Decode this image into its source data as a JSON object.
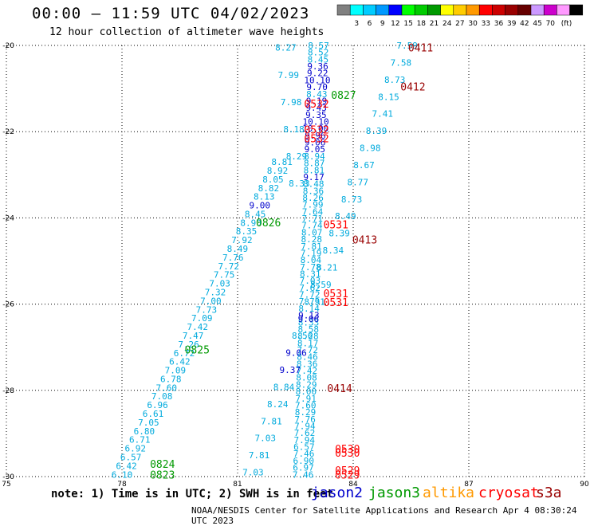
{
  "header": {
    "title": "00:00 — 11:59 UTC 04/02/2023",
    "subtitle": "12 hour collection of altimeter wave heights"
  },
  "color_scale": {
    "unit": "(ft)",
    "colors": [
      "#808080",
      "#00ffff",
      "#00ccff",
      "#0099ff",
      "#0000ff",
      "#00ff00",
      "#00cc00",
      "#009900",
      "#ffff00",
      "#ffcc00",
      "#ff9900",
      "#ff0000",
      "#cc0000",
      "#990000",
      "#660000",
      "#cc99ff",
      "#cc00cc",
      "#ff99ff",
      "#000000"
    ],
    "labels": [
      "3",
      "6",
      "9",
      "12",
      "15",
      "18",
      "21",
      "24",
      "27",
      "30",
      "33",
      "36",
      "39",
      "42",
      "45",
      "70"
    ]
  },
  "note": "note:  1) Time is in UTC; 2) SWH is in feet",
  "satellites": [
    {
      "name": "jason2",
      "color": "#0000cc"
    },
    {
      "name": "jason3",
      "color": "#009900"
    },
    {
      "name": "altika",
      "color": "#ff9900"
    },
    {
      "name": "cryosat",
      "color": "#ff0000"
    },
    {
      "name": "s3a",
      "color": "#990000"
    }
  ],
  "footer": "NOAA/NESDIS Center for Satellite Applications and Research   Apr  4 08:30:24 UTC 2023",
  "chart_data": {
    "type": "scatter",
    "x_ticks": [
      "75",
      "78",
      "81",
      "84",
      "87",
      "90"
    ],
    "y_ticks": [
      "-20",
      "-22",
      "-24",
      "-26",
      "-28",
      "-30"
    ],
    "xlim": [
      75,
      90
    ],
    "ylim": [
      -30,
      -20
    ],
    "grid": true,
    "tracks": [
      {
        "color": "#00aadd",
        "lon0": 83.1,
        "lat0": -20,
        "lon1": 82.7,
        "lat1": -29.95,
        "values": [
          "8.57",
          "8.52",
          "8.45",
          "9.36",
          "9.22",
          "10.10",
          "9.70",
          "8.43",
          "9.19",
          "9.43",
          "9.35",
          "10.10",
          "10.00",
          "9.96",
          "9.06",
          "9.05",
          "8.94",
          "8.87",
          "8.81",
          "9.17",
          "8.48",
          "8.36",
          "8.26",
          "7.99",
          "7.64",
          "7.71",
          "7.74",
          "8.07",
          "8.28",
          "7.81",
          "7.19",
          "8.04",
          "7.78",
          "8.31",
          "7.03",
          "7.62",
          "7.72",
          "7.73",
          "8.14",
          "9.13",
          "8.33",
          "8.58",
          "8.28",
          "8.17",
          "7.72",
          "8.46",
          "8.36",
          "7.42",
          "8.08",
          "8.29",
          "8.00",
          "7.91",
          "7.60",
          "8.29",
          "7.76",
          "7.94",
          "7.62",
          "7.94",
          "6.57",
          "7.46",
          "6.90",
          "6.97",
          "7.46"
        ]
      },
      {
        "color": "#00aadd",
        "lon0": 82.25,
        "lat0": -20.05,
        "lon1": 82.6,
        "lat1": -23.2,
        "values": [
          "8.27",
          "7.99",
          "7.98",
          "8.18",
          "8.29",
          "8.33"
        ]
      },
      {
        "color": "#00aadd",
        "lon0": 85.4,
        "lat0": -20,
        "lon1": 81.4,
        "lat1": -29.9,
        "values": [
          "7.59",
          "7.58",
          "8.73",
          "8.15",
          "7.41",
          "8.39",
          "8.98",
          "8.67",
          "8.77",
          "8.73",
          "8.49",
          "8.39",
          "8.34",
          "8.21",
          "8.59",
          "8.91",
          "9.06",
          "8.56",
          "9.06",
          "9.37",
          "8.84",
          "8.24",
          "7.81",
          "7.03",
          "7.81",
          "7.03"
        ]
      },
      {
        "color": "#00aadd",
        "lon0": 82.15,
        "lat0": -22.7,
        "lon1": 78.0,
        "lat1": -29.95,
        "values": [
          "8.81",
          "8.92",
          "8.05",
          "8.82",
          "8.13",
          "9.00",
          "8.45",
          "8.90",
          "8.35",
          "7.92",
          "8.49",
          "7.76",
          "7.72",
          "7.75",
          "7.03",
          "7.32",
          "7.00",
          "7.73",
          "7.09",
          "7.42",
          "7.47",
          "7.26",
          "6.72",
          "6.42",
          "7.09",
          "6.78",
          "7.60",
          "7.08",
          "6.96",
          "6.61",
          "7.05",
          "6.80",
          "6.71",
          "6.92",
          "6.57",
          "6.42",
          "6.10"
        ]
      }
    ],
    "tags": [
      {
        "text": "0411",
        "lon": 85.75,
        "lat": -20.05,
        "sat": "s3a"
      },
      {
        "text": "0412",
        "lon": 85.55,
        "lat": -20.95,
        "sat": "s3a"
      },
      {
        "text": "0827",
        "lon": 83.75,
        "lat": -21.15,
        "sat": "jason3"
      },
      {
        "text": "0532",
        "lon": 83.05,
        "lat": -21.35,
        "sat": "cryosat"
      },
      {
        "text": "0532",
        "lon": 83.05,
        "lat": -21.95,
        "sat": "cryosat"
      },
      {
        "text": "0532",
        "lon": 83.05,
        "lat": -22.15,
        "sat": "cryosat"
      },
      {
        "text": "0826",
        "lon": 81.8,
        "lat": -24.1,
        "sat": "jason3"
      },
      {
        "text": "0531",
        "lon": 83.55,
        "lat": -24.15,
        "sat": "cryosat"
      },
      {
        "text": "0413",
        "lon": 84.3,
        "lat": -24.5,
        "sat": "s3a"
      },
      {
        "text": "0531",
        "lon": 83.55,
        "lat": -25.75,
        "sat": "cryosat"
      },
      {
        "text": "0531",
        "lon": 83.55,
        "lat": -25.95,
        "sat": "cryosat"
      },
      {
        "text": "0825",
        "lon": 79.95,
        "lat": -27.05,
        "sat": "jason3"
      },
      {
        "text": "0414",
        "lon": 83.65,
        "lat": -27.95,
        "sat": "s3a"
      },
      {
        "text": "0530",
        "lon": 83.85,
        "lat": -29.35,
        "sat": "cryosat"
      },
      {
        "text": "0530",
        "lon": 83.85,
        "lat": -29.45,
        "sat": "cryosat"
      },
      {
        "text": "0824",
        "lon": 79.05,
        "lat": -29.7,
        "sat": "jason3"
      },
      {
        "text": "0823",
        "lon": 79.05,
        "lat": -29.95,
        "sat": "jason3"
      },
      {
        "text": "0529",
        "lon": 83.85,
        "lat": -29.85,
        "sat": "cryosat"
      },
      {
        "text": "0529",
        "lon": 83.85,
        "lat": -29.95,
        "sat": "cryosat"
      }
    ]
  }
}
